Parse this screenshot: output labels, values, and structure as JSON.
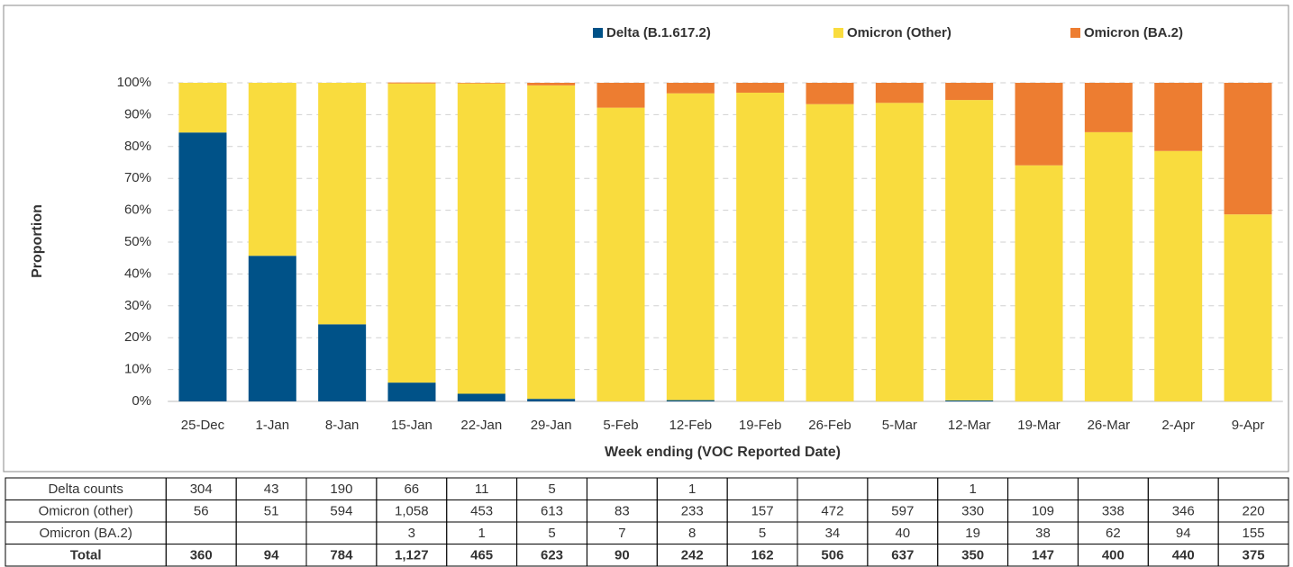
{
  "chart_data": {
    "type": "stacked_bar",
    "x_label": "Week ending (VOC Reported Date)",
    "y_label": "Proportion",
    "categories": [
      "25-Dec",
      "1-Jan",
      "8-Jan",
      "15-Jan",
      "22-Jan",
      "29-Jan",
      "5-Feb",
      "12-Feb",
      "19-Feb",
      "26-Feb",
      "5-Mar",
      "12-Mar",
      "19-Mar",
      "26-Mar",
      "2-Apr",
      "9-Apr"
    ],
    "series": [
      {
        "name": "Delta (B.1.617.2)",
        "color": "#005288",
        "values": [
          84.4,
          45.7,
          24.2,
          5.9,
          2.4,
          0.8,
          0,
          0.4,
          0,
          0,
          0,
          0.3,
          0,
          0,
          0,
          0
        ]
      },
      {
        "name": "Omicron (Other)",
        "color": "#f9dc3e",
        "values": [
          15.6,
          54.3,
          75.8,
          93.9,
          97.4,
          98.4,
          92.2,
          96.3,
          96.9,
          93.3,
          93.7,
          94.3,
          74.1,
          84.5,
          78.6,
          58.7
        ]
      },
      {
        "name": "Omicron (BA.2)",
        "color": "#ed7d31",
        "values": [
          0,
          0,
          0,
          0.3,
          0.2,
          0.8,
          7.8,
          3.3,
          3.1,
          6.7,
          6.3,
          5.4,
          25.9,
          15.5,
          21.4,
          41.3
        ]
      }
    ],
    "ylim": [
      0,
      100
    ],
    "yticks": [
      {
        "value": 0,
        "label": "0%"
      },
      {
        "value": 10,
        "label": "10%"
      },
      {
        "value": 20,
        "label": "20%"
      },
      {
        "value": 30,
        "label": "30%"
      },
      {
        "value": 40,
        "label": "40%"
      },
      {
        "value": 50,
        "label": "50%"
      },
      {
        "value": 60,
        "label": "60%"
      },
      {
        "value": 70,
        "label": "70%"
      },
      {
        "value": 80,
        "label": "80%"
      },
      {
        "value": 90,
        "label": "90%"
      },
      {
        "value": 100,
        "label": "100%"
      }
    ],
    "grid": true,
    "legend": "top"
  },
  "table": {
    "rows": [
      {
        "label": "Delta counts",
        "cells": [
          "304",
          "43",
          "190",
          "66",
          "11",
          "5",
          null,
          "1",
          null,
          null,
          null,
          "1",
          null,
          null,
          null,
          null
        ]
      },
      {
        "label": "Omicron (other)",
        "cells": [
          "56",
          "51",
          "594",
          "1,058",
          "453",
          "613",
          "83",
          "233",
          "157",
          "472",
          "597",
          "330",
          "109",
          "338",
          "346",
          "220"
        ]
      },
      {
        "label": "Omicron (BA.2)",
        "cells": [
          null,
          null,
          null,
          "3",
          "1",
          "5",
          "7",
          "8",
          "5",
          "34",
          "40",
          "19",
          "38",
          "62",
          "94",
          "155"
        ]
      },
      {
        "label": "Total",
        "cells": [
          "360",
          "94",
          "784",
          "1,127",
          "465",
          "623",
          "90",
          "242",
          "162",
          "506",
          "637",
          "350",
          "147",
          "400",
          "440",
          "375"
        ]
      }
    ]
  }
}
